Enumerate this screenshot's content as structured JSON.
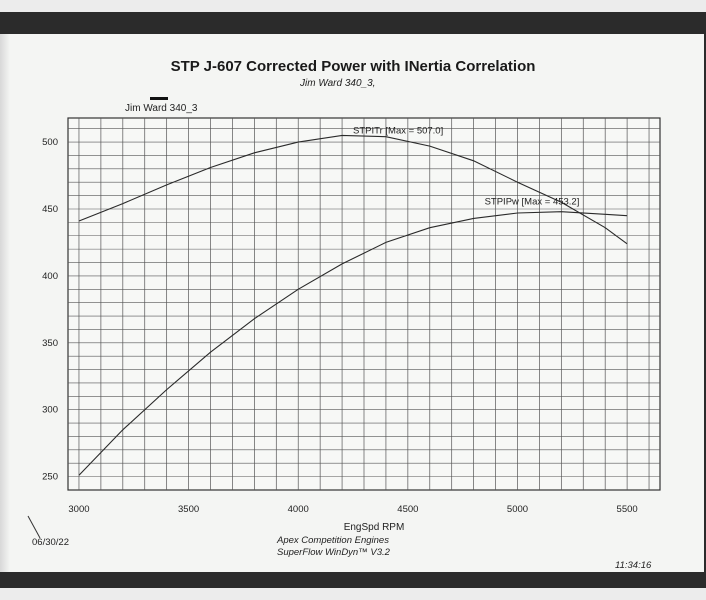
{
  "title": "STP J-607 Corrected Power with INertia Correlation",
  "subtitle": "Jim Ward 340_3,",
  "legend_label": "Jim Ward 340_3",
  "footer": {
    "date": "06/30/22",
    "company": "Apex Competition Engines",
    "software": "SuperFlow WinDyn™ V3.2",
    "time": "11:34:16"
  },
  "chart_data": {
    "type": "line",
    "title": "STP J-607 Corrected Power with INertia Correlation",
    "xlabel": "EngSpd RPM",
    "ylabel": "",
    "xlim": [
      2950,
      5650
    ],
    "ylim": [
      240,
      518
    ],
    "x_ticks": [
      3000,
      3500,
      4000,
      4500,
      5000,
      5500
    ],
    "y_ticks": [
      250,
      300,
      350,
      400,
      450,
      500
    ],
    "grid": true,
    "series": [
      {
        "name": "STPITr [Max = 507.0]",
        "x": [
          3000,
          3200,
          3400,
          3600,
          3800,
          4000,
          4200,
          4400,
          4600,
          4800,
          5000,
          5200,
          5400,
          5500
        ],
        "y": [
          441,
          454,
          468,
          481,
          492,
          500,
          505,
          504,
          497,
          486,
          470,
          455,
          436,
          424
        ],
        "label_at": [
          4250,
          505
        ]
      },
      {
        "name": "STPIPw [Max = 453.2]",
        "x": [
          3000,
          3200,
          3400,
          3600,
          3800,
          4000,
          4200,
          4400,
          4600,
          4800,
          5000,
          5200,
          5400,
          5500
        ],
        "y": [
          251,
          285,
          315,
          343,
          368,
          390,
          409,
          425,
          436,
          443,
          447,
          448,
          446,
          445
        ],
        "label_at": [
          4850,
          452
        ]
      }
    ]
  }
}
